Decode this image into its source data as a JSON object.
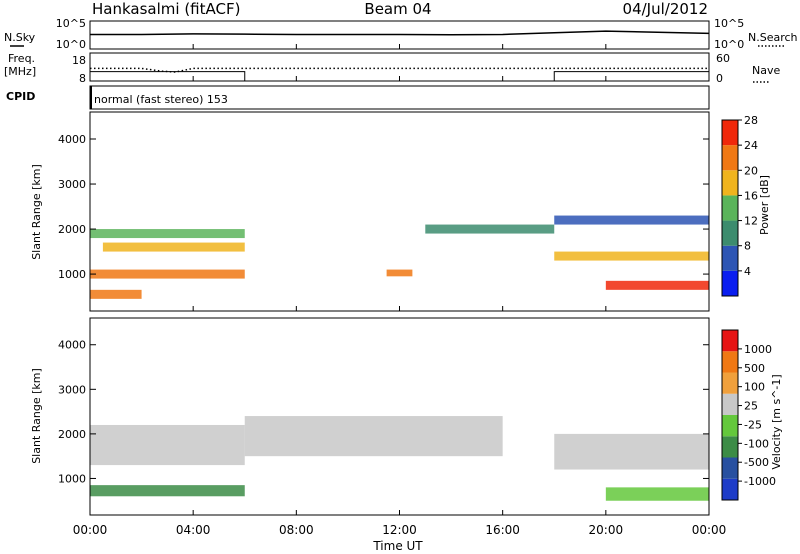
{
  "header": {
    "station": "Hankasalmi (fitACF)",
    "beam": "Beam 04",
    "date": "04/Jul/2012"
  },
  "left_labels": {
    "nsky": "N.Sky",
    "freq": "Freq.",
    "mhz": "[MHz]",
    "cpid": "CPID"
  },
  "right_labels": {
    "nsearch": "N.Search",
    "nave": "Nave"
  },
  "mode_text": "normal (fast stereo) 153",
  "chart_data": [
    {
      "type": "line",
      "panel": "noise",
      "series": [
        {
          "name": "N.Sky",
          "style": "solid",
          "x": [
            0,
            2,
            4,
            6,
            8,
            10,
            12,
            14,
            16,
            18,
            20,
            22,
            24
          ],
          "values": [
            2.6,
            2.6,
            2.7,
            2.65,
            2.6,
            2.6,
            2.6,
            2.55,
            2.6,
            2.9,
            3.2,
            3.0,
            2.8
          ]
        }
      ],
      "y_ticks_left": [
        "10^5",
        "10^0"
      ],
      "y_ticks_right": [
        "10^5",
        "10^0"
      ],
      "xlim": [
        0,
        24
      ]
    },
    {
      "type": "line",
      "panel": "frequency",
      "series": [
        {
          "name": "Freq.",
          "style": "dotted",
          "x": [
            0,
            2,
            2.8,
            3.3,
            4,
            6,
            10,
            14,
            18,
            20,
            22,
            24
          ],
          "values": [
            12.5,
            12.5,
            11.5,
            11.2,
            12.5,
            12.5,
            12.5,
            12.5,
            12.5,
            12.5,
            12.5,
            12.5
          ]
        },
        {
          "name": "Nave",
          "style": "solid",
          "x": [
            0,
            6,
            6,
            18,
            18,
            24
          ],
          "values": [
            20,
            20,
            0,
            0,
            20,
            20
          ]
        }
      ],
      "y_ticks_left": [
        "18",
        "8"
      ],
      "y_ticks_right": [
        "60",
        "0"
      ],
      "xlim": [
        0,
        24
      ]
    },
    {
      "type": "heatmap",
      "panel": "power",
      "ylabel": "Slant Range [km]",
      "xlim": [
        0,
        24
      ],
      "ylim": [
        180,
        4600
      ],
      "y_ticks": [
        "1000",
        "2000",
        "3000",
        "4000"
      ],
      "colorbar": {
        "label": "Power [dB]",
        "ticks": [
          "4",
          "8",
          "12",
          "16",
          "20",
          "24",
          "28"
        ],
        "colors": [
          "#0a1ef0",
          "#2d55b4",
          "#3c8c6e",
          "#5ab45a",
          "#f0b41e",
          "#f07814",
          "#f0280a"
        ]
      },
      "regions": [
        {
          "t": [
            0,
            6
          ],
          "r": [
            900,
            1100
          ],
          "level": 0.9
        },
        {
          "t": [
            0,
            2
          ],
          "r": [
            450,
            650
          ],
          "level": 0.85
        },
        {
          "t": [
            0.5,
            6
          ],
          "r": [
            1500,
            1700
          ],
          "level": 0.7
        },
        {
          "t": [
            0,
            6
          ],
          "r": [
            1800,
            2000
          ],
          "level": 0.55
        },
        {
          "t": [
            18,
            24
          ],
          "r": [
            1300,
            1500
          ],
          "level": 0.7
        },
        {
          "t": [
            20,
            24
          ],
          "r": [
            650,
            850
          ],
          "level": 0.95
        },
        {
          "t": [
            18,
            24
          ],
          "r": [
            2100,
            2300
          ],
          "level": 0.2
        },
        {
          "t": [
            13,
            18
          ],
          "r": [
            1900,
            2100
          ],
          "level": 0.3
        },
        {
          "t": [
            11.5,
            12.5
          ],
          "r": [
            950,
            1100
          ],
          "level": 0.75
        }
      ]
    },
    {
      "type": "heatmap",
      "panel": "velocity",
      "xlabel": "Time UT",
      "ylabel": "Slant Range [km]",
      "xlim": [
        0,
        24
      ],
      "ylim": [
        180,
        4600
      ],
      "y_ticks": [
        "1000",
        "2000",
        "3000",
        "4000"
      ],
      "x_ticks": [
        "00:00",
        "04:00",
        "08:00",
        "12:00",
        "16:00",
        "20:00",
        "00:00"
      ],
      "colorbar": {
        "label": "Velocity [m s^-1]",
        "ticks": [
          "1000",
          "500",
          "100",
          "25",
          "-25",
          "-100",
          "-500",
          "-1000"
        ],
        "colors": [
          "#1e3cc8",
          "#2850a0",
          "#3c8c46",
          "#64c83c",
          "#c8c8c8",
          "#f0a03c",
          "#f07814",
          "#e61414"
        ]
      },
      "regions": [
        {
          "t": [
            0,
            6
          ],
          "r": [
            600,
            850
          ],
          "level": 0.35
        },
        {
          "t": [
            0,
            6
          ],
          "r": [
            1300,
            2200
          ],
          "level": 0
        },
        {
          "t": [
            18,
            24
          ],
          "r": [
            1200,
            2000
          ],
          "level": 0
        },
        {
          "t": [
            20,
            24
          ],
          "r": [
            500,
            800
          ],
          "level": 0.4
        },
        {
          "t": [
            6,
            16
          ],
          "r": [
            1500,
            2400
          ],
          "level": 0
        }
      ]
    }
  ]
}
